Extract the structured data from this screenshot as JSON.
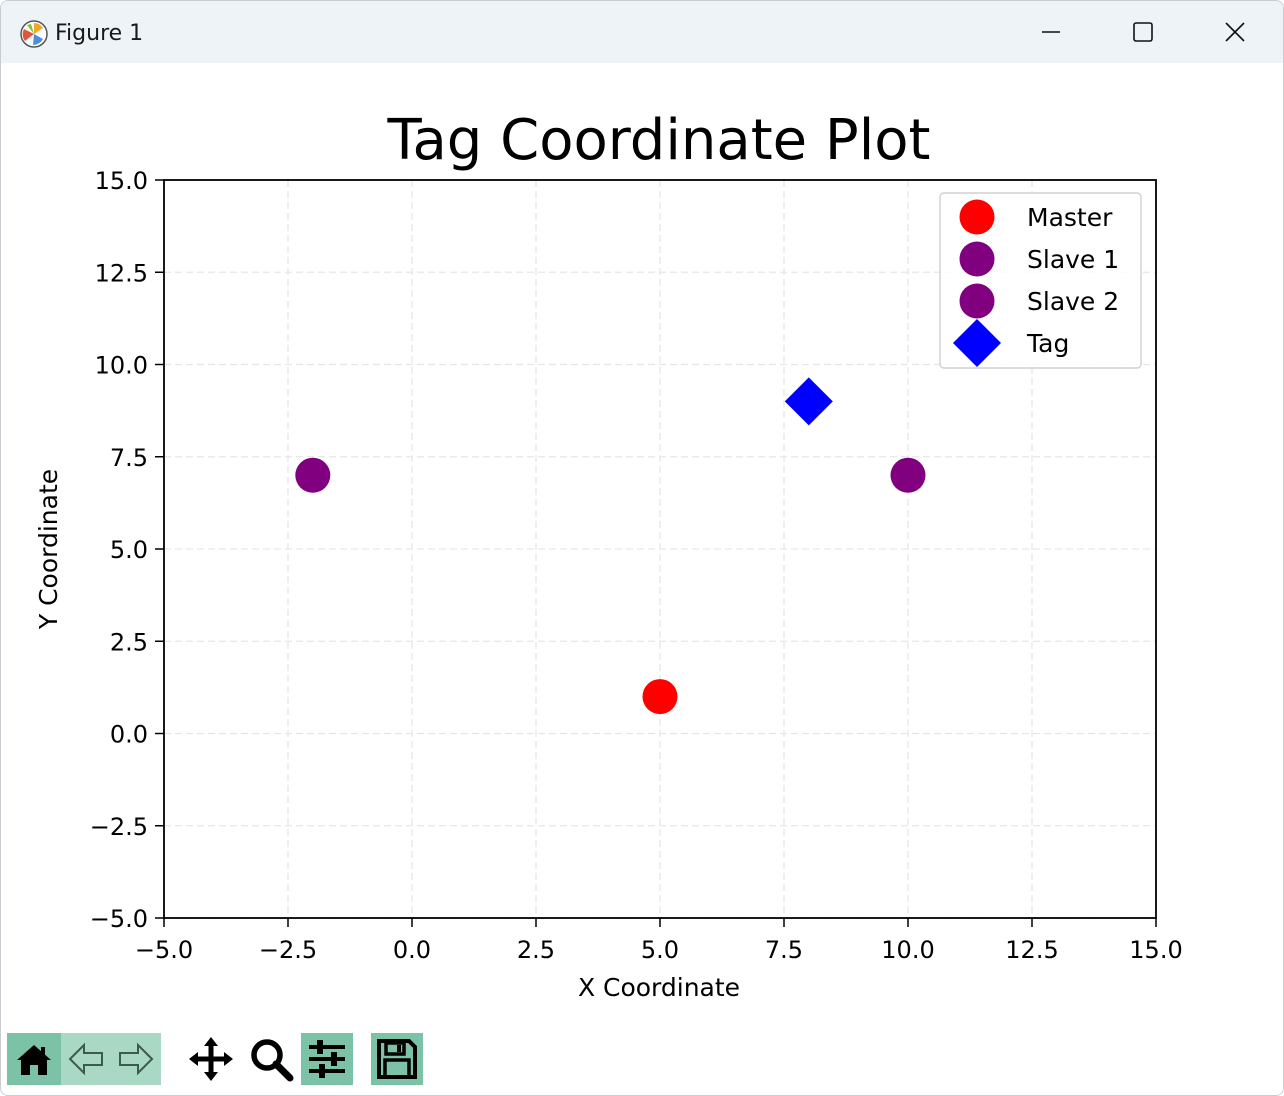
{
  "window": {
    "title": "Figure 1",
    "icons": {
      "app": "matplotlib-icon",
      "minimize": "minimize-icon",
      "maximize": "maximize-icon",
      "close": "close-icon"
    }
  },
  "toolbar": {
    "buttons": [
      {
        "name": "home",
        "icon": "home-icon"
      },
      {
        "name": "back",
        "icon": "back-arrow-icon"
      },
      {
        "name": "forward",
        "icon": "forward-arrow-icon"
      },
      {
        "name": "pan",
        "icon": "move-icon"
      },
      {
        "name": "zoom",
        "icon": "magnifier-icon"
      },
      {
        "name": "configure-subplots",
        "icon": "sliders-icon"
      },
      {
        "name": "save",
        "icon": "floppy-disk-icon"
      }
    ]
  },
  "chart_data": {
    "type": "scatter",
    "title": "Tag Coordinate Plot",
    "xlabel": "X Coordinate",
    "ylabel": "Y Coordinate",
    "xlim": [
      -5,
      15
    ],
    "ylim": [
      -5,
      15
    ],
    "xticks": [
      "−5.0",
      "−2.5",
      "0.0",
      "2.5",
      "5.0",
      "7.5",
      "10.0",
      "12.5",
      "15.0"
    ],
    "yticks": [
      "−5.0",
      "−2.5",
      "0.0",
      "2.5",
      "5.0",
      "7.5",
      "10.0",
      "12.5",
      "15.0"
    ],
    "grid": true,
    "legend_position": "upper right",
    "series": [
      {
        "name": "Master",
        "marker": "circle",
        "color": "#ff0000",
        "points": [
          [
            5,
            1
          ]
        ]
      },
      {
        "name": "Slave 1",
        "marker": "circle",
        "color": "#800080",
        "points": [
          [
            -2,
            7
          ]
        ]
      },
      {
        "name": "Slave 2",
        "marker": "circle",
        "color": "#800080",
        "points": [
          [
            10,
            7
          ]
        ]
      },
      {
        "name": "Tag",
        "marker": "diamond",
        "color": "#0000ff",
        "points": [
          [
            8,
            9
          ]
        ]
      }
    ]
  }
}
